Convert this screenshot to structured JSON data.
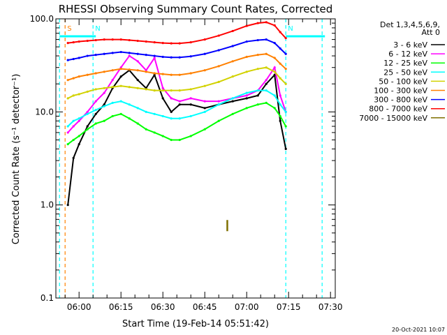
{
  "chart_data": {
    "type": "line",
    "title": "RHESSI Observing Summary Count Rates, Corrected",
    "xlabel": "Start Time (19-Feb-14 05:51:42)",
    "ylabel": "Corrected Count Rate (s⁻¹ detector⁻¹)",
    "yscale": "log",
    "ylim": [
      0.1,
      100.0
    ],
    "xlim": [
      "05:51:42",
      "07:31:42"
    ],
    "x_ticks": [
      "06:00",
      "06:15",
      "06:30",
      "06:45",
      "07:00",
      "07:15",
      "07:30"
    ],
    "y_ticks": [
      "0.1",
      "1.0",
      "10.0",
      "100.0"
    ],
    "grid": false,
    "legend_position": "right",
    "legend_header": [
      "Det 1,3,4,5,6,9,",
      "Att 0"
    ],
    "date_stamp": "20-Oct-2021 10:07",
    "series": [
      {
        "name": "3 - 6 keV",
        "color": "#000000",
        "x": [
          "05:56",
          "05:58",
          "06:00",
          "06:03",
          "06:06",
          "06:09",
          "06:12",
          "06:15",
          "06:18",
          "06:21",
          "06:24",
          "06:27",
          "06:30",
          "06:33",
          "06:36",
          "06:40",
          "06:45",
          "06:50",
          "06:55",
          "07:00",
          "07:04",
          "07:07",
          "07:10",
          "07:12",
          "07:14"
        ],
        "values": [
          1.0,
          3.2,
          4.5,
          7.0,
          9.5,
          12,
          18,
          24,
          28,
          22,
          18,
          25,
          14,
          10,
          12,
          12,
          11,
          12,
          13,
          14,
          15,
          20,
          25,
          8,
          4
        ]
      },
      {
        "name": "6 - 12 keV",
        "color": "#ff00ff",
        "x": [
          "05:56",
          "05:58",
          "06:00",
          "06:03",
          "06:06",
          "06:09",
          "06:12",
          "06:15",
          "06:18",
          "06:21",
          "06:24",
          "06:27",
          "06:30",
          "06:33",
          "06:36",
          "06:40",
          "06:45",
          "06:50",
          "06:55",
          "07:00",
          "07:04",
          "07:07",
          "07:10",
          "07:12",
          "07:14"
        ],
        "values": [
          6,
          7,
          8,
          10,
          13,
          16,
          22,
          30,
          40,
          35,
          28,
          38,
          18,
          14,
          13,
          14,
          13,
          13,
          14,
          15,
          17,
          22,
          30,
          15,
          10
        ]
      },
      {
        "name": "12 - 25 keV",
        "color": "#00ff00",
        "x": [
          "05:56",
          "05:58",
          "06:00",
          "06:03",
          "06:06",
          "06:09",
          "06:12",
          "06:15",
          "06:18",
          "06:21",
          "06:24",
          "06:27",
          "06:30",
          "06:33",
          "06:36",
          "06:40",
          "06:45",
          "06:50",
          "06:55",
          "07:00",
          "07:04",
          "07:07",
          "07:10",
          "07:12",
          "07:14"
        ],
        "values": [
          4.5,
          5,
          5.5,
          6.5,
          7.5,
          8,
          9,
          9.5,
          8.5,
          7.5,
          6.5,
          6,
          5.5,
          5,
          5,
          5.5,
          6.5,
          8,
          9.5,
          11,
          12,
          12.5,
          11,
          9,
          7
        ]
      },
      {
        "name": "25 - 50 keV",
        "color": "#00ffff",
        "x": [
          "05:56",
          "05:58",
          "06:00",
          "06:03",
          "06:06",
          "06:09",
          "06:12",
          "06:15",
          "06:18",
          "06:21",
          "06:24",
          "06:27",
          "06:30",
          "06:33",
          "06:36",
          "06:40",
          "06:45",
          "06:50",
          "06:55",
          "07:00",
          "07:04",
          "07:07",
          "07:10",
          "07:12",
          "07:14"
        ],
        "values": [
          7,
          8,
          8.5,
          9.5,
          10.5,
          11.5,
          12.5,
          13,
          12,
          11,
          10,
          9.5,
          9,
          8.5,
          8.5,
          9,
          10,
          12,
          14,
          16,
          17,
          17,
          15,
          12,
          10
        ]
      },
      {
        "name": "50 - 100 keV",
        "color": "#d2d200",
        "x": [
          "05:56",
          "05:58",
          "06:00",
          "06:03",
          "06:06",
          "06:09",
          "06:12",
          "06:15",
          "06:18",
          "06:21",
          "06:24",
          "06:27",
          "06:30",
          "06:33",
          "06:36",
          "06:40",
          "06:45",
          "06:50",
          "06:55",
          "07:00",
          "07:04",
          "07:07",
          "07:10",
          "07:12",
          "07:14"
        ],
        "values": [
          14,
          15,
          15.5,
          16.5,
          17.5,
          18,
          18.5,
          19,
          18.5,
          18,
          17.5,
          17,
          17,
          17,
          17,
          17.5,
          19,
          21,
          24,
          27,
          29,
          30,
          27,
          23,
          20
        ]
      },
      {
        "name": "100 - 300 keV",
        "color": "#ff8000",
        "x": [
          "05:56",
          "05:58",
          "06:00",
          "06:03",
          "06:06",
          "06:09",
          "06:12",
          "06:15",
          "06:18",
          "06:21",
          "06:24",
          "06:27",
          "06:30",
          "06:33",
          "06:36",
          "06:40",
          "06:45",
          "06:50",
          "06:55",
          "07:00",
          "07:04",
          "07:07",
          "07:10",
          "07:12",
          "07:14"
        ],
        "values": [
          22,
          23,
          24,
          25,
          26,
          27,
          28,
          29,
          28.5,
          28,
          27,
          26,
          25.5,
          25,
          25,
          26,
          28,
          31,
          35,
          39,
          41,
          42,
          38,
          33,
          29
        ]
      },
      {
        "name": "300 - 800 keV",
        "color": "#0000ff",
        "x": [
          "05:56",
          "05:58",
          "06:00",
          "06:03",
          "06:06",
          "06:09",
          "06:12",
          "06:15",
          "06:18",
          "06:21",
          "06:24",
          "06:27",
          "06:30",
          "06:33",
          "06:36",
          "06:40",
          "06:45",
          "06:50",
          "06:55",
          "07:00",
          "07:04",
          "07:07",
          "07:10",
          "07:12",
          "07:14"
        ],
        "values": [
          36,
          37,
          38,
          40,
          41,
          42,
          43,
          44,
          43,
          42,
          41,
          40,
          39,
          38.5,
          38.5,
          39.5,
          42,
          46,
          51,
          57,
          59,
          60,
          55,
          48,
          42
        ]
      },
      {
        "name": "800 - 7000 keV",
        "color": "#ff0000",
        "x": [
          "05:56",
          "05:58",
          "06:00",
          "06:03",
          "06:06",
          "06:09",
          "06:12",
          "06:15",
          "06:18",
          "06:21",
          "06:24",
          "06:27",
          "06:30",
          "06:33",
          "06:36",
          "06:40",
          "06:45",
          "06:50",
          "06:55",
          "07:00",
          "07:04",
          "07:07",
          "07:10",
          "07:12",
          "07:14"
        ],
        "values": [
          55,
          56,
          57,
          58,
          59,
          60,
          60,
          60,
          59,
          58,
          57,
          56,
          55,
          54.5,
          54.5,
          56,
          60,
          66,
          74,
          84,
          90,
          92,
          85,
          72,
          62
        ]
      },
      {
        "name": "7000 - 15000 keV",
        "color": "#7f6f00",
        "x": [
          "06:53"
        ],
        "values": [
          0.6
        ]
      }
    ],
    "event_lines": [
      {
        "color": "#00ffff",
        "x": "05:53",
        "label": ""
      },
      {
        "color": "#ff8000",
        "x": "05:55",
        "label": "S"
      },
      {
        "color": "#00ffff",
        "x": "06:05",
        "label": "N"
      },
      {
        "color": "#00ffff",
        "x": "07:14",
        "label": "N"
      },
      {
        "color": "#00ffff",
        "x": "07:27",
        "label": ""
      }
    ],
    "attenuator_bar": {
      "color": "#00ffff",
      "value": 65
    }
  }
}
